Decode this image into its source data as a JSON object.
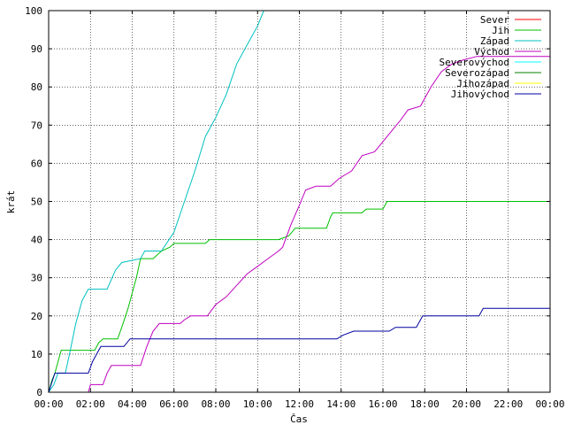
{
  "chart_data": {
    "type": "line",
    "title": "",
    "xlabel": "Čas",
    "ylabel": "krát",
    "xlim": [
      0,
      24
    ],
    "ylim": [
      0,
      100
    ],
    "x_ticks": [
      "00:00",
      "02:00",
      "04:00",
      "06:00",
      "08:00",
      "10:00",
      "12:00",
      "14:00",
      "16:00",
      "18:00",
      "20:00",
      "22:00",
      "00:00"
    ],
    "y_ticks": [
      "0",
      "10",
      "20",
      "30",
      "40",
      "50",
      "60",
      "70",
      "80",
      "90",
      "100"
    ],
    "grid": true,
    "legend_position": "top-right",
    "x_unit": "hours since 00:00",
    "series": [
      {
        "name": "Sever",
        "color": "#ff0000",
        "points": []
      },
      {
        "name": "Jih",
        "color": "#00c000",
        "points": [
          [
            0.0,
            0
          ],
          [
            0.15,
            3
          ],
          [
            0.3,
            5
          ],
          [
            0.45,
            8
          ],
          [
            0.6,
            11
          ],
          [
            1.0,
            11
          ],
          [
            2.2,
            11
          ],
          [
            2.4,
            13
          ],
          [
            2.6,
            14
          ],
          [
            3.3,
            14
          ],
          [
            3.5,
            17
          ],
          [
            3.8,
            22
          ],
          [
            4.0,
            26
          ],
          [
            4.2,
            30
          ],
          [
            4.4,
            35
          ],
          [
            5.0,
            35
          ],
          [
            5.4,
            37
          ],
          [
            5.8,
            38
          ],
          [
            6.0,
            39
          ],
          [
            7.5,
            39
          ],
          [
            7.7,
            40
          ],
          [
            11.0,
            40
          ],
          [
            11.5,
            41
          ],
          [
            11.8,
            43
          ],
          [
            13.3,
            43
          ],
          [
            13.5,
            46
          ],
          [
            13.6,
            47
          ],
          [
            15.0,
            47
          ],
          [
            15.2,
            48
          ],
          [
            16.0,
            48
          ],
          [
            16.2,
            50
          ],
          [
            24.0,
            50
          ]
        ]
      },
      {
        "name": "Západ",
        "color": "#00c0c0",
        "points": [
          [
            0.0,
            0
          ],
          [
            0.25,
            2
          ],
          [
            0.45,
            5
          ],
          [
            0.8,
            5
          ],
          [
            1.0,
            10
          ],
          [
            1.3,
            18
          ],
          [
            1.6,
            24
          ],
          [
            1.9,
            27
          ],
          [
            2.8,
            27
          ],
          [
            3.2,
            32
          ],
          [
            3.5,
            34
          ],
          [
            4.4,
            35
          ],
          [
            4.6,
            37
          ],
          [
            5.4,
            37
          ],
          [
            6.0,
            42
          ],
          [
            6.5,
            50
          ],
          [
            7.0,
            58
          ],
          [
            7.5,
            67
          ],
          [
            8.0,
            72
          ],
          [
            8.5,
            78
          ],
          [
            9.0,
            86
          ],
          [
            9.5,
            91
          ],
          [
            10.0,
            96
          ],
          [
            10.3,
            100
          ]
        ]
      },
      {
        "name": "Východ",
        "color": "#c000c0",
        "points": [
          [
            1.9,
            0
          ],
          [
            2.0,
            2
          ],
          [
            2.6,
            2
          ],
          [
            2.8,
            5
          ],
          [
            3.0,
            7
          ],
          [
            4.4,
            7
          ],
          [
            4.7,
            12
          ],
          [
            5.0,
            16
          ],
          [
            5.3,
            18
          ],
          [
            6.3,
            18
          ],
          [
            6.5,
            19
          ],
          [
            6.8,
            20
          ],
          [
            7.6,
            20
          ],
          [
            8.0,
            23
          ],
          [
            8.5,
            25
          ],
          [
            9.0,
            28
          ],
          [
            9.5,
            31
          ],
          [
            10.0,
            33
          ],
          [
            10.5,
            35
          ],
          [
            11.0,
            37
          ],
          [
            11.2,
            38
          ],
          [
            11.6,
            44
          ],
          [
            12.0,
            49
          ],
          [
            12.3,
            53
          ],
          [
            12.8,
            54
          ],
          [
            13.5,
            54
          ],
          [
            13.9,
            56
          ],
          [
            14.5,
            58
          ],
          [
            15.0,
            62
          ],
          [
            15.6,
            63
          ],
          [
            16.2,
            67
          ],
          [
            16.8,
            71
          ],
          [
            17.2,
            74
          ],
          [
            17.8,
            75
          ],
          [
            18.3,
            80
          ],
          [
            18.8,
            84
          ],
          [
            19.3,
            86
          ],
          [
            19.8,
            87
          ],
          [
            20.5,
            88
          ],
          [
            24.0,
            88
          ]
        ]
      },
      {
        "name": "Severovýchod",
        "color": "#00ffff",
        "points": []
      },
      {
        "name": "Severozápad",
        "color": "#008000",
        "points": []
      },
      {
        "name": "Jihozápad",
        "color": "#ffff00",
        "points": []
      },
      {
        "name": "Jihovýchod",
        "color": "#0000a0",
        "points": [
          [
            0.0,
            0
          ],
          [
            0.3,
            5
          ],
          [
            1.9,
            5
          ],
          [
            2.1,
            8
          ],
          [
            2.3,
            10
          ],
          [
            2.5,
            12
          ],
          [
            3.6,
            12
          ],
          [
            3.9,
            14
          ],
          [
            13.8,
            14
          ],
          [
            14.1,
            15
          ],
          [
            14.6,
            16
          ],
          [
            16.3,
            16
          ],
          [
            16.6,
            17
          ],
          [
            17.6,
            17
          ],
          [
            17.9,
            20
          ],
          [
            20.6,
            20
          ],
          [
            20.8,
            22
          ],
          [
            24.0,
            22
          ]
        ]
      }
    ]
  }
}
